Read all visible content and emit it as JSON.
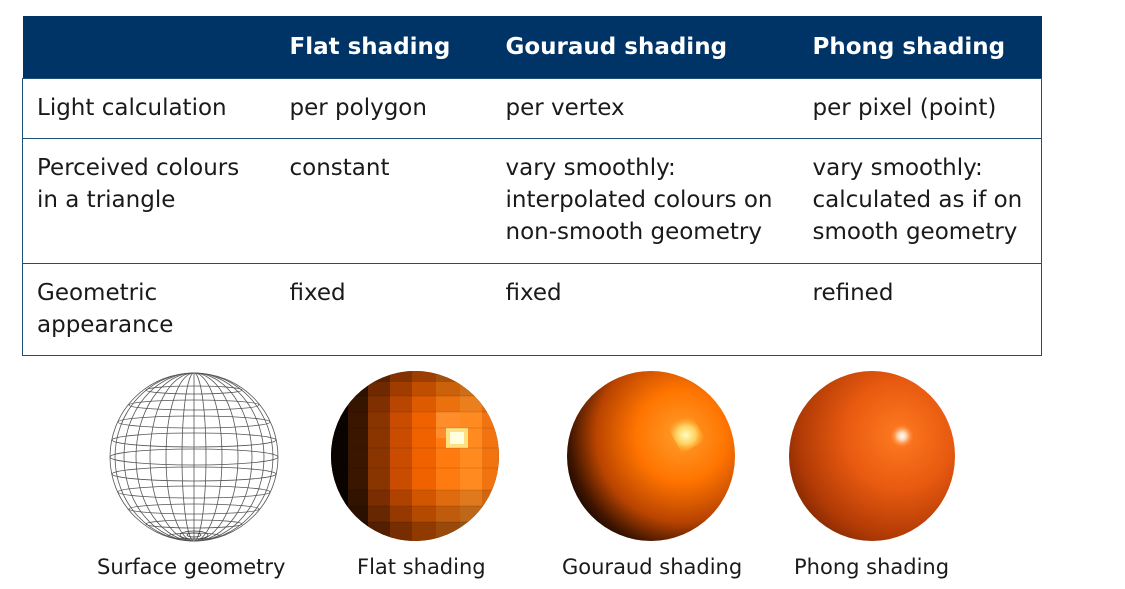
{
  "table": {
    "headers": [
      "",
      "Flat shading",
      "Gouraud shading",
      "Phong shading"
    ],
    "rows": [
      {
        "label": [
          "Light calculation"
        ],
        "flat": [
          "per polygon"
        ],
        "gouraud": [
          "per vertex"
        ],
        "phong": [
          "per pixel (point)"
        ]
      },
      {
        "label": [
          "Perceived colours",
          "in a triangle"
        ],
        "flat": [
          "constant"
        ],
        "gouraud": [
          "vary smoothly:",
          "interpolated colours on",
          "non-smooth geometry"
        ],
        "phong": [
          "vary smoothly:",
          "calculated as if on",
          "smooth geometry"
        ]
      },
      {
        "label": [
          "Geometric",
          "appearance"
        ],
        "flat": [
          "fixed"
        ],
        "gouraud": [
          "fixed"
        ],
        "phong": [
          "refined"
        ]
      }
    ]
  },
  "figures": [
    {
      "icon": "wireframe-sphere-icon",
      "caption": "Surface geometry"
    },
    {
      "icon": "flat-shaded-sphere-icon",
      "caption": "Flat shading"
    },
    {
      "icon": "gouraud-shaded-sphere-icon",
      "caption": "Gouraud shading"
    },
    {
      "icon": "phong-shaded-sphere-icon",
      "caption": "Phong shading"
    }
  ],
  "colors": {
    "header_bg": "#003366",
    "border": "#1f4e79",
    "sphere_orange": "#ff6a00"
  }
}
